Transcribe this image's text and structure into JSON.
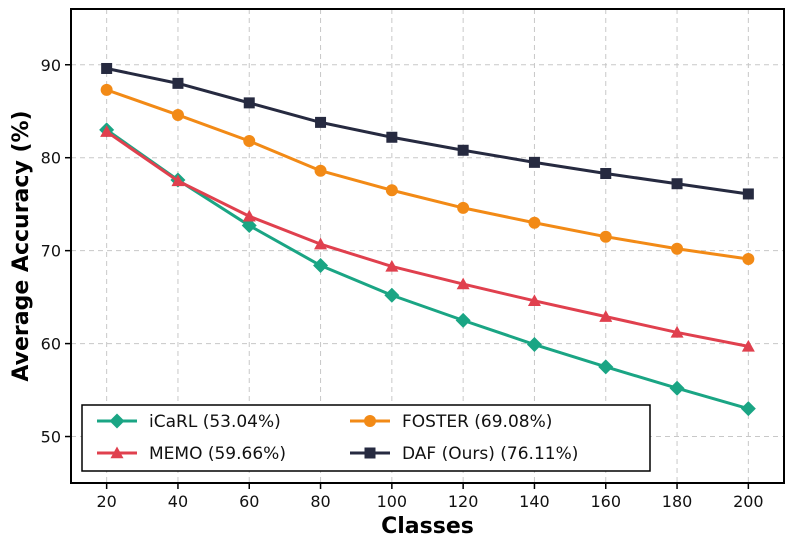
{
  "chart_data": {
    "type": "line",
    "title": "",
    "xlabel": "Classes",
    "ylabel": "Average Accuracy (%)",
    "x": [
      20,
      40,
      60,
      80,
      100,
      120,
      140,
      160,
      180,
      200
    ],
    "xlim": [
      10,
      210
    ],
    "ylim": [
      45,
      96
    ],
    "xticks": [
      20,
      40,
      60,
      80,
      100,
      120,
      140,
      160,
      180,
      200
    ],
    "yticks": [
      50,
      60,
      70,
      80,
      90
    ],
    "grid": true,
    "legend_position": "lower-left",
    "series": [
      {
        "name": "iCaRL (53.04%)",
        "color": "#1aa584",
        "marker": "diamond",
        "values": [
          83.0,
          77.6,
          72.7,
          68.4,
          65.2,
          62.5,
          59.9,
          57.5,
          55.2,
          53.0
        ]
      },
      {
        "name": "MEMO (59.66%)",
        "color": "#e0404e",
        "marker": "triangle",
        "values": [
          82.8,
          77.5,
          73.7,
          70.7,
          68.3,
          66.4,
          64.6,
          62.9,
          61.2,
          59.7
        ]
      },
      {
        "name": "FOSTER (69.08%)",
        "color": "#f28a16",
        "marker": "circle",
        "values": [
          87.3,
          84.6,
          81.8,
          78.6,
          76.5,
          74.6,
          73.0,
          71.5,
          70.2,
          69.1
        ]
      },
      {
        "name": "DAF (Ours) (76.11%)",
        "color": "#262a40",
        "marker": "square",
        "values": [
          89.6,
          88.0,
          85.9,
          83.8,
          82.2,
          80.8,
          79.5,
          78.3,
          77.2,
          76.1
        ]
      }
    ]
  }
}
